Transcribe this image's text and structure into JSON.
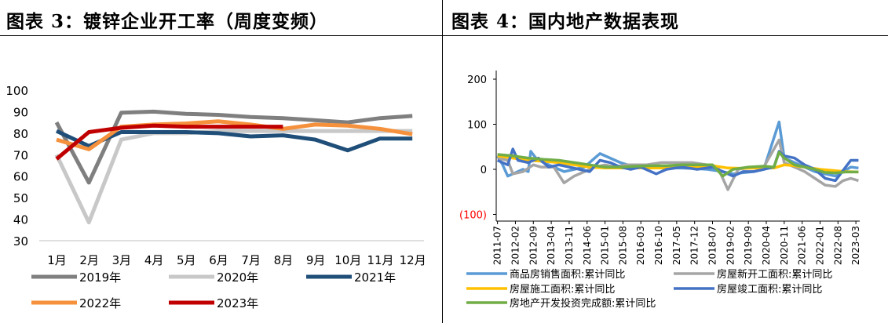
{
  "left_title": "图表 3：镀锌企业开工率（周度变频）",
  "right_title": "图表 4：国内地产数据表现",
  "chart_data": [
    {
      "type": "line",
      "title": "镀锌企业开工率（周度变频）",
      "categories": [
        "1月",
        "2月",
        "3月",
        "4月",
        "5月",
        "6月",
        "7月",
        "8月",
        "9月",
        "10月",
        "11月",
        "12月"
      ],
      "yticks": [
        "100",
        "90",
        "80",
        "70",
        "60",
        "50",
        "40",
        "30"
      ],
      "ylim": [
        30,
        100
      ],
      "legend_position": "bottom",
      "series": [
        {
          "name": "2019年",
          "color": "#7f7f7f",
          "values": [
            85,
            57,
            89.5,
            90,
            89,
            88.5,
            87.5,
            87,
            86,
            85,
            87,
            88
          ]
        },
        {
          "name": "2020年",
          "color": "#c8c8c8",
          "values": [
            70,
            38.5,
            77,
            80,
            80,
            81,
            81,
            81,
            81,
            81,
            81,
            81
          ]
        },
        {
          "name": "2021年",
          "color": "#1f4e79",
          "values": [
            81,
            74,
            80.5,
            80.5,
            80.5,
            80,
            78.5,
            79,
            77,
            72,
            77.5,
            77.5
          ]
        },
        {
          "name": "2022年",
          "color": "#f5913c",
          "values": [
            77,
            72.5,
            83,
            84,
            84.5,
            85.5,
            84,
            82,
            84,
            83.5,
            82,
            79.5
          ]
        },
        {
          "name": "2023年",
          "color": "#c00000",
          "values": [
            68,
            80.5,
            82.5,
            83.5,
            83,
            83,
            83,
            83,
            null,
            null,
            null,
            null
          ]
        }
      ]
    },
    {
      "type": "line",
      "title": "国内地产数据表现",
      "yticks": [
        "200",
        "100",
        "0",
        "(100)"
      ],
      "ylim": [
        -100,
        200
      ],
      "x_start": "2011-07",
      "x_labels": [
        "2011-07",
        "2012-02",
        "2012-09",
        "2013-04",
        "2013-11",
        "2014-06",
        "2015-01",
        "2015-08",
        "2016-03",
        "2016-10",
        "2017-05",
        "2017-12",
        "2018-07",
        "2019-02",
        "2019-09",
        "2020-04",
        "2020-11",
        "2021-06",
        "2022-01",
        "2022-08",
        "2023-03"
      ],
      "legend_position": "bottom",
      "series": [
        {
          "name": "商品房销售面积:累计同比",
          "color": "#5b9bd5",
          "keypoints": [
            [
              0,
              30
            ],
            [
              2,
              10
            ],
            [
              4,
              -15
            ],
            [
              6,
              -10
            ],
            [
              8,
              -5
            ],
            [
              10,
              0
            ],
            [
              12,
              -5
            ],
            [
              13,
              40
            ],
            [
              15,
              25
            ],
            [
              18,
              15
            ],
            [
              22,
              5
            ],
            [
              26,
              -5
            ],
            [
              30,
              0
            ],
            [
              34,
              5
            ],
            [
              38,
              25
            ],
            [
              40,
              35
            ],
            [
              44,
              25
            ],
            [
              48,
              15
            ],
            [
              52,
              8
            ],
            [
              58,
              5
            ],
            [
              64,
              5
            ],
            [
              70,
              3
            ],
            [
              76,
              2
            ],
            [
              82,
              0
            ],
            [
              88,
              -5
            ],
            [
              92,
              -10
            ],
            [
              100,
              -5
            ],
            [
              104,
              0
            ],
            [
              110,
              105
            ],
            [
              112,
              25
            ],
            [
              116,
              15
            ],
            [
              120,
              5
            ],
            [
              124,
              -5
            ],
            [
              128,
              -10
            ],
            [
              132,
              -15
            ],
            [
              135,
              -5
            ],
            [
              138,
              5
            ],
            [
              141,
              3
            ]
          ]
        },
        {
          "name": "房屋新开工面积:累计同比",
          "color": "#a5a5a5",
          "keypoints": [
            [
              0,
              25
            ],
            [
              4,
              20
            ],
            [
              6,
              -10
            ],
            [
              10,
              -5
            ],
            [
              14,
              10
            ],
            [
              17,
              5
            ],
            [
              22,
              5
            ],
            [
              26,
              -30
            ],
            [
              30,
              -15
            ],
            [
              34,
              -5
            ],
            [
              38,
              5
            ],
            [
              42,
              10
            ],
            [
              46,
              5
            ],
            [
              50,
              10
            ],
            [
              54,
              10
            ],
            [
              58,
              10
            ],
            [
              64,
              15
            ],
            [
              70,
              15
            ],
            [
              76,
              15
            ],
            [
              82,
              10
            ],
            [
              86,
              5
            ],
            [
              90,
              -45
            ],
            [
              94,
              0
            ],
            [
              100,
              5
            ],
            [
              104,
              5
            ],
            [
              110,
              65
            ],
            [
              112,
              15
            ],
            [
              116,
              5
            ],
            [
              120,
              -5
            ],
            [
              124,
              -20
            ],
            [
              128,
              -35
            ],
            [
              132,
              -38
            ],
            [
              135,
              -25
            ],
            [
              138,
              -20
            ],
            [
              141,
              -25
            ]
          ]
        },
        {
          "name": "房屋施工面积:累计同比",
          "color": "#ffc000",
          "keypoints": [
            [
              0,
              30
            ],
            [
              6,
              25
            ],
            [
              12,
              20
            ],
            [
              18,
              18
            ],
            [
              24,
              15
            ],
            [
              30,
              10
            ],
            [
              36,
              5
            ],
            [
              42,
              3
            ],
            [
              48,
              3
            ],
            [
              54,
              3
            ],
            [
              60,
              3
            ],
            [
              66,
              3
            ],
            [
              72,
              5
            ],
            [
              78,
              5
            ],
            [
              84,
              8
            ],
            [
              90,
              3
            ],
            [
              96,
              2
            ],
            [
              102,
              3
            ],
            [
              108,
              3
            ],
            [
              112,
              10
            ],
            [
              116,
              8
            ],
            [
              120,
              5
            ],
            [
              126,
              0
            ],
            [
              132,
              -3
            ],
            [
              136,
              -5
            ],
            [
              141,
              -6
            ]
          ]
        },
        {
          "name": "房屋竣工面积:累计同比",
          "color": "#4472c4",
          "keypoints": [
            [
              0,
              20
            ],
            [
              4,
              10
            ],
            [
              6,
              45
            ],
            [
              8,
              20
            ],
            [
              12,
              15
            ],
            [
              16,
              25
            ],
            [
              20,
              5
            ],
            [
              24,
              10
            ],
            [
              28,
              5
            ],
            [
              32,
              0
            ],
            [
              36,
              -5
            ],
            [
              40,
              20
            ],
            [
              44,
              15
            ],
            [
              48,
              5
            ],
            [
              52,
              0
            ],
            [
              56,
              5
            ],
            [
              62,
              -10
            ],
            [
              66,
              0
            ],
            [
              72,
              5
            ],
            [
              78,
              0
            ],
            [
              84,
              5
            ],
            [
              88,
              -5
            ],
            [
              92,
              -15
            ],
            [
              96,
              -5
            ],
            [
              100,
              -5
            ],
            [
              104,
              0
            ],
            [
              108,
              5
            ],
            [
              110,
              40
            ],
            [
              112,
              30
            ],
            [
              116,
              25
            ],
            [
              120,
              10
            ],
            [
              124,
              0
            ],
            [
              128,
              -20
            ],
            [
              132,
              -25
            ],
            [
              136,
              5
            ],
            [
              138,
              20
            ],
            [
              141,
              20
            ]
          ]
        },
        {
          "name": "房地产开发投资完成额:累计同比",
          "color": "#70ad47",
          "keypoints": [
            [
              0,
              33
            ],
            [
              6,
              30
            ],
            [
              12,
              25
            ],
            [
              18,
              22
            ],
            [
              24,
              20
            ],
            [
              30,
              15
            ],
            [
              36,
              10
            ],
            [
              42,
              5
            ],
            [
              48,
              5
            ],
            [
              54,
              7
            ],
            [
              60,
              8
            ],
            [
              66,
              8
            ],
            [
              72,
              10
            ],
            [
              78,
              10
            ],
            [
              84,
              10
            ],
            [
              88,
              -15
            ],
            [
              92,
              0
            ],
            [
              98,
              5
            ],
            [
              104,
              7
            ],
            [
              108,
              5
            ],
            [
              110,
              38
            ],
            [
              112,
              25
            ],
            [
              116,
              10
            ],
            [
              120,
              5
            ],
            [
              124,
              0
            ],
            [
              128,
              -7
            ],
            [
              132,
              -8
            ],
            [
              136,
              -6
            ],
            [
              141,
              -6
            ]
          ]
        }
      ]
    }
  ]
}
